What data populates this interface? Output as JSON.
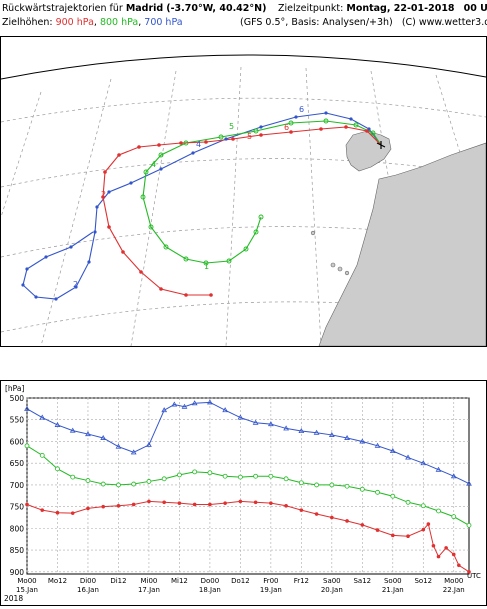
{
  "header": {
    "title_prefix": "Rückwärtstrajektorien für",
    "location": "Madrid",
    "coords": "(-3.70°W, 40.42°N)",
    "target_label": "Zielzeitpunkt:",
    "target_time": "Montag, 22-01-2018",
    "target_utc": "00 UTC",
    "levels_label": "Zielhöhen:",
    "level_900": "900 hPa",
    "level_800": "800 hPa",
    "level_700": "700 hPa",
    "model_info": "(GFS 0.5°, Basis: Analysen/+3h)",
    "copyright": "(C) www.wetter3.de"
  },
  "colors": {
    "l900": "#e03030",
    "l800": "#22bb22",
    "l700": "#3355cc",
    "land": "#cccccc",
    "grid": "#9a9a9a"
  },
  "map": {
    "labels_900": [
      "2",
      "5",
      "6"
    ],
    "labels_800": [
      "1",
      "4",
      "5"
    ],
    "labels_700": [
      "2",
      "4",
      "6"
    ]
  },
  "chart": {
    "y_unit": "[hPa]",
    "x_unit": "UTC",
    "year": "2018",
    "time_ticks": [
      "Mo00",
      "Mo12",
      "Di00",
      "Di12",
      "Mi00",
      "Mi12",
      "Do00",
      "Do12",
      "Fr00",
      "Fr12",
      "Sa00",
      "Sa12",
      "So00",
      "So12",
      "Mo00"
    ],
    "date_labels": [
      "15.Jan",
      "16.Jan",
      "17.Jan",
      "18.Jan",
      "19.Jan",
      "20.Jan",
      "21.Jan",
      "22.Jan"
    ],
    "y_ticks": [
      "500",
      "550",
      "600",
      "650",
      "700",
      "750",
      "800",
      "850",
      "900"
    ]
  },
  "chart_data": {
    "type": "line",
    "ylabel": "[hPa]",
    "xlabel": "UTC",
    "ylim": [
      905,
      500
    ],
    "x_range_hours": [
      0,
      168
    ],
    "y_inverted": true,
    "grid": true,
    "series": [
      {
        "name": "900 hPa",
        "color": "#e03030",
        "points": [
          [
            0,
            745
          ],
          [
            6,
            758
          ],
          [
            12,
            764
          ],
          [
            18,
            765
          ],
          [
            24,
            754
          ],
          [
            30,
            750
          ],
          [
            36,
            748
          ],
          [
            42,
            745
          ],
          [
            48,
            738
          ],
          [
            54,
            740
          ],
          [
            60,
            742
          ],
          [
            66,
            745
          ],
          [
            72,
            745
          ],
          [
            78,
            742
          ],
          [
            84,
            738
          ],
          [
            90,
            740
          ],
          [
            96,
            742
          ],
          [
            102,
            748
          ],
          [
            108,
            758
          ],
          [
            114,
            767
          ],
          [
            120,
            775
          ],
          [
            126,
            783
          ],
          [
            132,
            792
          ],
          [
            138,
            804
          ],
          [
            144,
            816
          ],
          [
            150,
            818
          ],
          [
            156,
            803
          ],
          [
            158,
            790
          ],
          [
            160,
            840
          ],
          [
            162,
            865
          ],
          [
            165,
            845
          ],
          [
            168,
            860
          ],
          [
            170,
            885
          ],
          [
            174,
            900
          ]
        ]
      },
      {
        "name": "800 hPa",
        "color": "#22bb22",
        "points": [
          [
            0,
            610
          ],
          [
            6,
            632
          ],
          [
            12,
            663
          ],
          [
            18,
            682
          ],
          [
            24,
            690
          ],
          [
            30,
            698
          ],
          [
            36,
            700
          ],
          [
            42,
            698
          ],
          [
            48,
            692
          ],
          [
            54,
            686
          ],
          [
            60,
            677
          ],
          [
            66,
            670
          ],
          [
            72,
            672
          ],
          [
            78,
            680
          ],
          [
            84,
            682
          ],
          [
            90,
            680
          ],
          [
            96,
            680
          ],
          [
            102,
            686
          ],
          [
            108,
            695
          ],
          [
            114,
            700
          ],
          [
            120,
            700
          ],
          [
            126,
            703
          ],
          [
            132,
            710
          ],
          [
            138,
            717
          ],
          [
            144,
            726
          ],
          [
            150,
            740
          ],
          [
            156,
            748
          ],
          [
            162,
            760
          ],
          [
            168,
            773
          ],
          [
            174,
            793
          ]
        ]
      },
      {
        "name": "700 hPa",
        "color": "#3355cc",
        "points": [
          [
            0,
            525
          ],
          [
            6,
            545
          ],
          [
            12,
            562
          ],
          [
            18,
            575
          ],
          [
            24,
            583
          ],
          [
            30,
            592
          ],
          [
            36,
            612
          ],
          [
            42,
            625
          ],
          [
            48,
            608
          ],
          [
            54,
            528
          ],
          [
            58,
            515
          ],
          [
            62,
            520
          ],
          [
            66,
            512
          ],
          [
            72,
            510
          ],
          [
            78,
            528
          ],
          [
            84,
            545
          ],
          [
            90,
            557
          ],
          [
            96,
            560
          ],
          [
            102,
            570
          ],
          [
            108,
            576
          ],
          [
            114,
            580
          ],
          [
            120,
            585
          ],
          [
            126,
            592
          ],
          [
            132,
            600
          ],
          [
            138,
            610
          ],
          [
            144,
            622
          ],
          [
            150,
            637
          ],
          [
            156,
            650
          ],
          [
            162,
            665
          ],
          [
            168,
            680
          ],
          [
            174,
            697
          ]
        ]
      }
    ]
  }
}
